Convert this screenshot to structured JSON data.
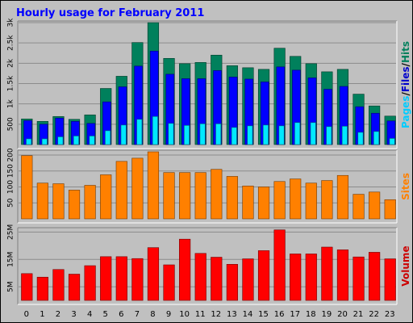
{
  "chart_data": {
    "type": "bar",
    "title": "Hourly usage for February 2011",
    "categories": [
      "0",
      "1",
      "2",
      "3",
      "4",
      "5",
      "6",
      "7",
      "8",
      "9",
      "10",
      "11",
      "12",
      "13",
      "14",
      "15",
      "16",
      "17",
      "18",
      "19",
      "20",
      "21",
      "22",
      "23"
    ],
    "panels": [
      {
        "name": "pages-files-hits",
        "ylabels": [
          {
            "text": "Pages",
            "color": "#00ccff"
          },
          {
            "text": "/",
            "color": "#000000"
          },
          {
            "text": "Files",
            "color": "#0000cc"
          },
          {
            "text": "/",
            "color": "#000000"
          },
          {
            "text": "Hits",
            "color": "#00805c"
          }
        ],
        "ylim": [
          0,
          3000
        ],
        "ticks": [
          {
            "value": 500,
            "label": "500"
          },
          {
            "value": 1000,
            "label": "1k"
          },
          {
            "value": 1500,
            "label": "1.5k"
          },
          {
            "value": 2000,
            "label": "2k"
          },
          {
            "value": 2500,
            "label": "2.5k"
          },
          {
            "value": 3000,
            "label": "3k"
          }
        ],
        "series": [
          {
            "name": "Hits",
            "color": "#00805c",
            "values": [
              630,
              570,
              690,
              620,
              730,
              1380,
              1680,
              2510,
              3000,
              2120,
              1990,
              2020,
              2200,
              1940,
              1890,
              1850,
              2370,
              2170,
              1990,
              1790,
              1850,
              1240,
              950,
              700
            ]
          },
          {
            "name": "Files",
            "color": "#0000ff",
            "values": [
              590,
              500,
              650,
              570,
              520,
              1050,
              1420,
              1930,
              2300,
              1730,
              1620,
              1620,
              1820,
              1660,
              1610,
              1540,
              1910,
              1830,
              1640,
              1360,
              1430,
              930,
              770,
              580
            ]
          },
          {
            "name": "Pages",
            "color": "#00e8ff",
            "values": [
              140,
              140,
              190,
              210,
              210,
              340,
              480,
              620,
              690,
              520,
              470,
              510,
              510,
              420,
              460,
              480,
              460,
              540,
              540,
              440,
              450,
              300,
              320,
              150
            ]
          }
        ]
      },
      {
        "name": "sites",
        "ylabels": [
          {
            "text": "Sites",
            "color": "#ff8000"
          }
        ],
        "ylim": [
          0,
          210
        ],
        "ticks": [
          {
            "value": 50,
            "label": "50"
          },
          {
            "value": 100,
            "label": "100"
          },
          {
            "value": 150,
            "label": "150"
          },
          {
            "value": 200,
            "label": "200"
          }
        ],
        "series": [
          {
            "name": "Sites",
            "color": "#ff8000",
            "values": [
              198,
              112,
              110,
              90,
              105,
              138,
              180,
              190,
              210,
              145,
              145,
              145,
              155,
              133,
              103,
              100,
              117,
              125,
              112,
              120,
              136,
              77,
              84,
              60
            ]
          }
        ]
      },
      {
        "name": "volume",
        "ylabels": [
          {
            "text": "Volume",
            "color": "#cc0000"
          }
        ],
        "ylim": [
          0,
          26
        ],
        "ticks": [
          {
            "value": 5,
            "label": "5M"
          },
          {
            "value": 15,
            "label": "15M"
          },
          {
            "value": 25,
            "label": "25M"
          }
        ],
        "series": [
          {
            "name": "Volume",
            "color": "#ff0000",
            "values": [
              9.8,
              8.5,
              11.3,
              9.6,
              12.7,
              16.0,
              16.0,
              15.3,
              19.3,
              13.0,
              22.4,
              17.2,
              15.8,
              13.2,
              15.2,
              18.2,
              25.8,
              17.0,
              17.0,
              19.5,
              18.5,
              15.9,
              17.6,
              15.2
            ]
          }
        ]
      }
    ]
  }
}
